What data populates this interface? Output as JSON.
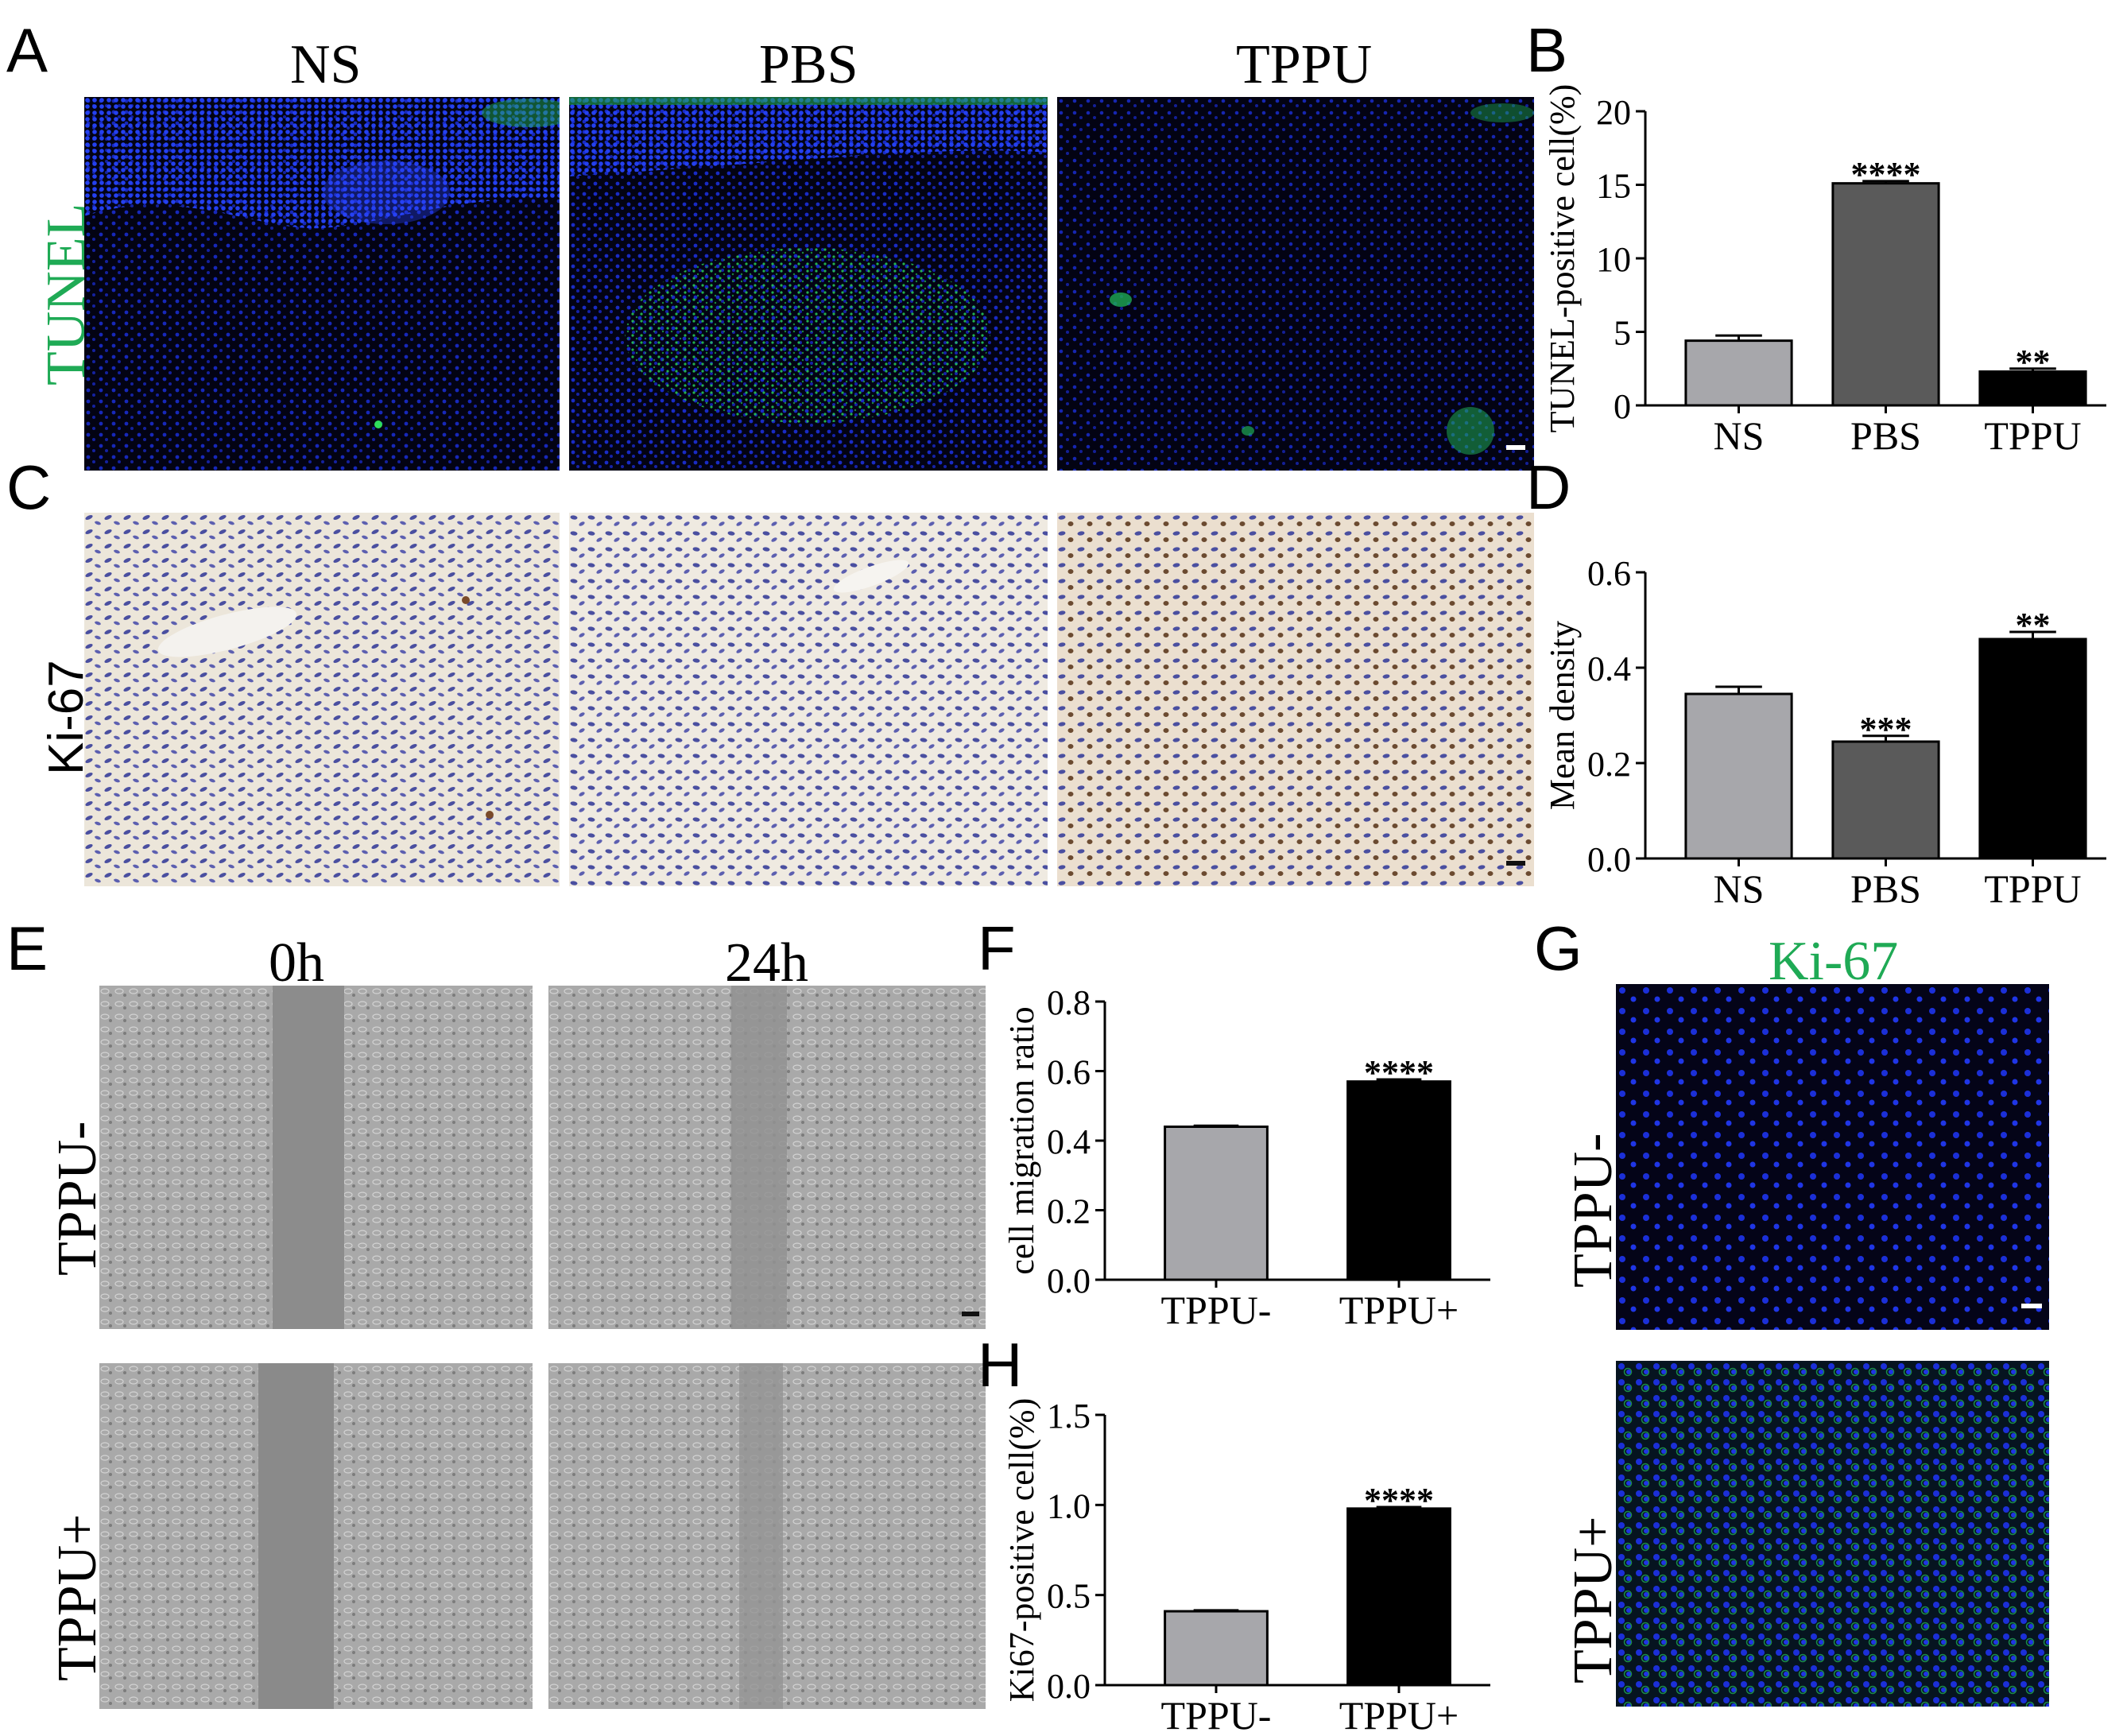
{
  "panels": {
    "A": {
      "letter": "A",
      "columns": [
        "NS",
        "PBS",
        "TPPU"
      ],
      "row_label": "TUNEL"
    },
    "B": {
      "letter": "B"
    },
    "C": {
      "letter": "C",
      "row_label": "Ki-67"
    },
    "D": {
      "letter": "D"
    },
    "E": {
      "letter": "E",
      "columns": [
        "0h",
        "24h"
      ],
      "rows": [
        "TPPU-",
        "TPPU+"
      ]
    },
    "F": {
      "letter": "F"
    },
    "G": {
      "letter": "G",
      "title": "Ki-67",
      "rows": [
        "TPPU-",
        "TPPU+"
      ]
    },
    "H": {
      "letter": "H"
    }
  },
  "colors": {
    "tunel_green": "#1faa55",
    "ki67_green": "#1faa55",
    "bar_light": "#a7a7ab",
    "bar_mid": "#5a5a5a",
    "bar_dark": "#000000",
    "nuclei_blue": "#1b2fd8"
  },
  "chart_data": [
    {
      "id": "B",
      "type": "bar",
      "categories": [
        "NS",
        "PBS",
        "TPPU"
      ],
      "values": [
        4.4,
        15.1,
        2.3
      ],
      "errors": [
        0.35,
        0.15,
        0.2
      ],
      "significance": [
        "",
        "****",
        "**"
      ],
      "bar_colors": [
        "#a7a7ab",
        "#5a5a5a",
        "#000000"
      ],
      "ylabel": "TUNEL-positive cell(%)",
      "ylim": [
        0,
        20
      ],
      "yticks": [
        0,
        5,
        10,
        15,
        20
      ],
      "ytick_labels": [
        "0",
        "5",
        "10",
        "15",
        "20"
      ]
    },
    {
      "id": "D",
      "type": "bar",
      "categories": [
        "NS",
        "PBS",
        "TPPU"
      ],
      "values": [
        0.345,
        0.245,
        0.46
      ],
      "errors": [
        0.015,
        0.012,
        0.015
      ],
      "significance": [
        "",
        "***",
        "**"
      ],
      "bar_colors": [
        "#a7a7ab",
        "#5a5a5a",
        "#000000"
      ],
      "ylabel": "Mean density",
      "ylim": [
        0,
        0.6
      ],
      "yticks": [
        0,
        0.2,
        0.4,
        0.6
      ],
      "ytick_labels": [
        "0.0",
        "0.2",
        "0.4",
        "0.6"
      ]
    },
    {
      "id": "F",
      "type": "bar",
      "categories": [
        "TPPU-",
        "TPPU+"
      ],
      "values": [
        0.44,
        0.57
      ],
      "errors": [
        0.003,
        0.006
      ],
      "significance": [
        "",
        "****"
      ],
      "bar_colors": [
        "#a7a7ab",
        "#000000"
      ],
      "ylabel": "cell migration ratio",
      "ylim": [
        0,
        0.8
      ],
      "yticks": [
        0,
        0.2,
        0.4,
        0.6,
        0.8
      ],
      "ytick_labels": [
        "0.0",
        "0.2",
        "0.4",
        "0.6",
        "0.8"
      ]
    },
    {
      "id": "H",
      "type": "bar",
      "categories": [
        "TPPU-",
        "TPPU+"
      ],
      "values": [
        0.41,
        0.98
      ],
      "errors": [
        0.005,
        0.008
      ],
      "significance": [
        "",
        "****"
      ],
      "bar_colors": [
        "#a7a7ab",
        "#000000"
      ],
      "ylabel": "Ki67-positive cell(%)",
      "ylim": [
        0,
        1.5
      ],
      "yticks": [
        0,
        0.5,
        1.0,
        1.5
      ],
      "ytick_labels": [
        "0.0",
        "0.5",
        "1.0",
        "1.5"
      ]
    }
  ]
}
